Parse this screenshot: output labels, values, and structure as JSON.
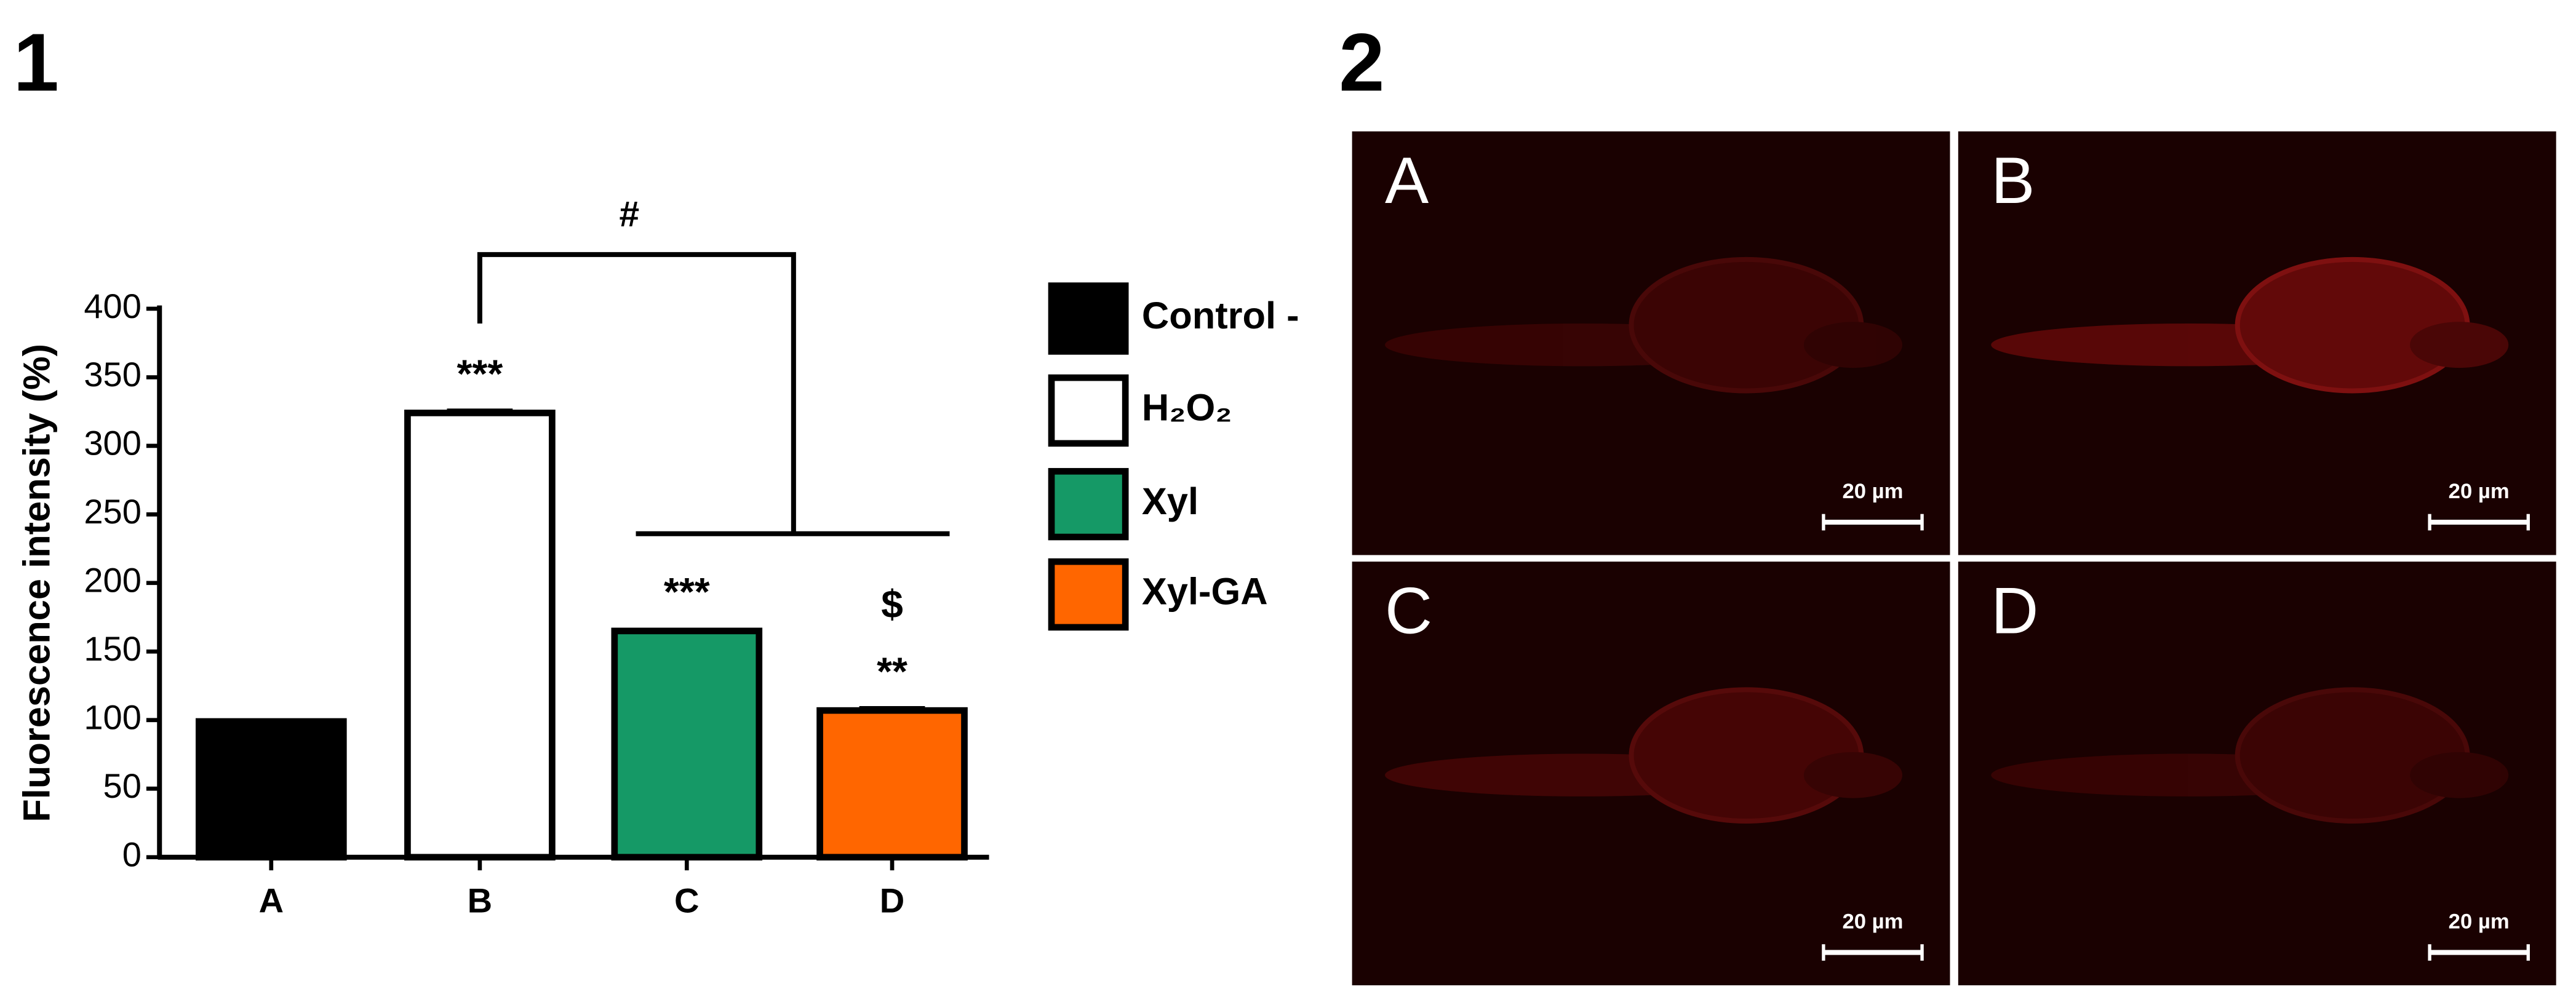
{
  "panel_labels": [
    "1",
    "2"
  ],
  "chart_data": {
    "type": "bar",
    "ylabel": "Fluorescence intensity (%)",
    "categories": [
      "A",
      "B",
      "C",
      "D"
    ],
    "values": [
      99,
      324,
      165,
      107
    ],
    "errors": [
      1,
      2,
      1,
      2
    ],
    "colors": [
      "#000000",
      "#ffffff",
      "#159966",
      "#ff6600"
    ],
    "legend": [
      "Control -",
      "H₂O₂",
      "Xyl",
      "Xyl-GA"
    ],
    "ylim": [
      0,
      400
    ],
    "yticks": [
      0,
      50,
      100,
      150,
      200,
      250,
      300,
      350,
      400
    ],
    "annotations": [
      {
        "x": "B",
        "text": "***"
      },
      {
        "x": "C",
        "text": "***"
      },
      {
        "x": "D",
        "text": "**"
      },
      {
        "x": "D",
        "text": "$"
      }
    ],
    "bracket_label": "#"
  },
  "micrographs": [
    {
      "label": "A",
      "scale_bar": "20 µm"
    },
    {
      "label": "B",
      "scale_bar": "20 µm"
    },
    {
      "label": "C",
      "scale_bar": "20 µm"
    },
    {
      "label": "D",
      "scale_bar": "20 µm"
    }
  ]
}
